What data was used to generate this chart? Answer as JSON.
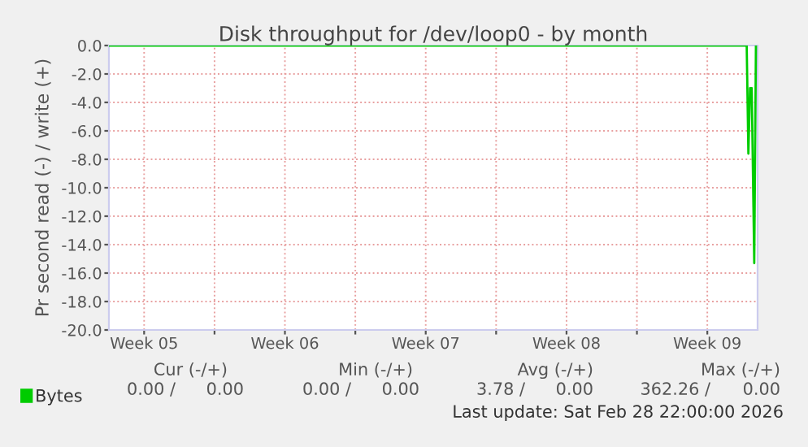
{
  "chart_data": {
    "type": "line",
    "title": "Disk throughput for /dev/loop0 - by month",
    "ylabel": "Pr second read (-) / write (+)",
    "x": [
      "2026-01-27T18:00",
      "2026-02-28T11:00",
      "2026-02-28T13:00",
      "2026-02-28T15:00",
      "2026-02-28T17:00",
      "2026-02-28T20:00",
      "2026-02-28T22:00"
    ],
    "series": [
      {
        "name": "Bytes",
        "color": "#00cc00",
        "values": [
          0,
          0,
          -7.6,
          -3.0,
          -3.0,
          -15.3,
          0
        ]
      }
    ],
    "xlim": [
      "2026-01-27T18:00",
      "2026-03-01T00:00"
    ],
    "xticks": [
      {
        "value": "2026-01-29T12:00",
        "label": "Week 05"
      },
      {
        "value": "2026-02-02",
        "label": null
      },
      {
        "value": "2026-02-05T12:00",
        "label": "Week 06"
      },
      {
        "value": "2026-02-09",
        "label": null
      },
      {
        "value": "2026-02-12T12:00",
        "label": "Week 07"
      },
      {
        "value": "2026-02-16",
        "label": null
      },
      {
        "value": "2026-02-19T12:00",
        "label": "Week 08"
      },
      {
        "value": "2026-02-23",
        "label": null
      },
      {
        "value": "2026-02-26T12:00",
        "label": "Week 09"
      }
    ],
    "ylim": [
      -20,
      0
    ],
    "yticks": [
      {
        "value": -20,
        "label": "-20.0"
      },
      {
        "value": -18,
        "label": "-18.0"
      },
      {
        "value": -16,
        "label": "-16.0"
      },
      {
        "value": -14,
        "label": "-14.0"
      },
      {
        "value": -12,
        "label": "-12.0"
      },
      {
        "value": -10,
        "label": "-10.0"
      },
      {
        "value": -8,
        "label": "-8.0"
      },
      {
        "value": -6,
        "label": "-6.0"
      },
      {
        "value": -4,
        "label": "-4.0"
      },
      {
        "value": -2,
        "label": "-2.0"
      },
      {
        "value": 0,
        "label": "0.0"
      }
    ],
    "grid": true,
    "legend": "bottom",
    "annotations": [
      "Cur (-/+)",
      "Min (-/+)",
      "Avg (-/+)",
      "Max (-/+)",
      "0.00 /",
      "0.00",
      "0.00 /",
      "0.00",
      "3.78 /",
      "0.00",
      "362.26 /",
      "0.00",
      "Last update: Sat Feb 28 22:00:00 2026"
    ]
  }
}
